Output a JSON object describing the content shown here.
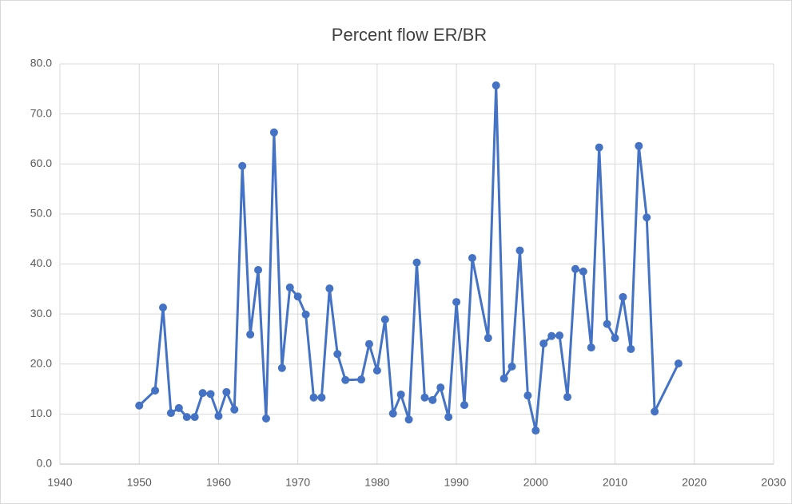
{
  "chart_data": {
    "type": "line",
    "title": "Percent flow ER/BR",
    "x": [
      1950,
      1952,
      1953,
      1954,
      1955,
      1956,
      1957,
      1958,
      1959,
      1960,
      1961,
      1962,
      1963,
      1964,
      1965,
      1966,
      1967,
      1968,
      1969,
      1970,
      1971,
      1972,
      1973,
      1974,
      1975,
      1976,
      1978,
      1979,
      1980,
      1981,
      1982,
      1983,
      1984,
      1985,
      1986,
      1987,
      1988,
      1989,
      1990,
      1991,
      1992,
      1994,
      1995,
      1996,
      1997,
      1998,
      1999,
      2000,
      2001,
      2002,
      2003,
      2004,
      2005,
      2006,
      2007,
      2008,
      2009,
      2010,
      2011,
      2012,
      2013,
      2014,
      2015,
      2018
    ],
    "series": [
      {
        "color": "#4472c4",
        "values": [
          11.7,
          14.7,
          31.3,
          10.2,
          11.2,
          9.4,
          9.4,
          14.2,
          14.0,
          9.6,
          14.4,
          10.9,
          59.6,
          25.9,
          38.8,
          9.1,
          66.3,
          19.2,
          35.3,
          33.5,
          29.9,
          13.3,
          13.3,
          35.1,
          22.0,
          16.8,
          16.9,
          24.0,
          18.7,
          28.9,
          10.1,
          13.9,
          8.9,
          40.3,
          13.3,
          12.8,
          15.3,
          9.4,
          32.4,
          11.8,
          41.2,
          25.2,
          75.7,
          17.1,
          19.5,
          42.7,
          13.7,
          6.7,
          24.1,
          25.6,
          25.7,
          13.4,
          39.0,
          38.5,
          23.3,
          63.3,
          28.0,
          25.2,
          33.4,
          23.0,
          63.6,
          49.3,
          10.5,
          20.1
        ]
      }
    ],
    "xlim": [
      1940,
      2030
    ],
    "xticks": [
      1940,
      1950,
      1960,
      1970,
      1980,
      1990,
      2000,
      2010,
      2020,
      2030
    ],
    "ylim": [
      0,
      80
    ],
    "yticks": [
      {
        "value": 0,
        "label": "0.0"
      },
      {
        "value": 10,
        "label": "10.0"
      },
      {
        "value": 20,
        "label": "20.0"
      },
      {
        "value": 30,
        "label": "30.0"
      },
      {
        "value": 40,
        "label": "40.0"
      },
      {
        "value": 50,
        "label": "50.0"
      },
      {
        "value": 60,
        "label": "60.0"
      },
      {
        "value": 70,
        "label": "70.0"
      },
      {
        "value": 80,
        "label": "80.0"
      }
    ],
    "grid": true
  }
}
